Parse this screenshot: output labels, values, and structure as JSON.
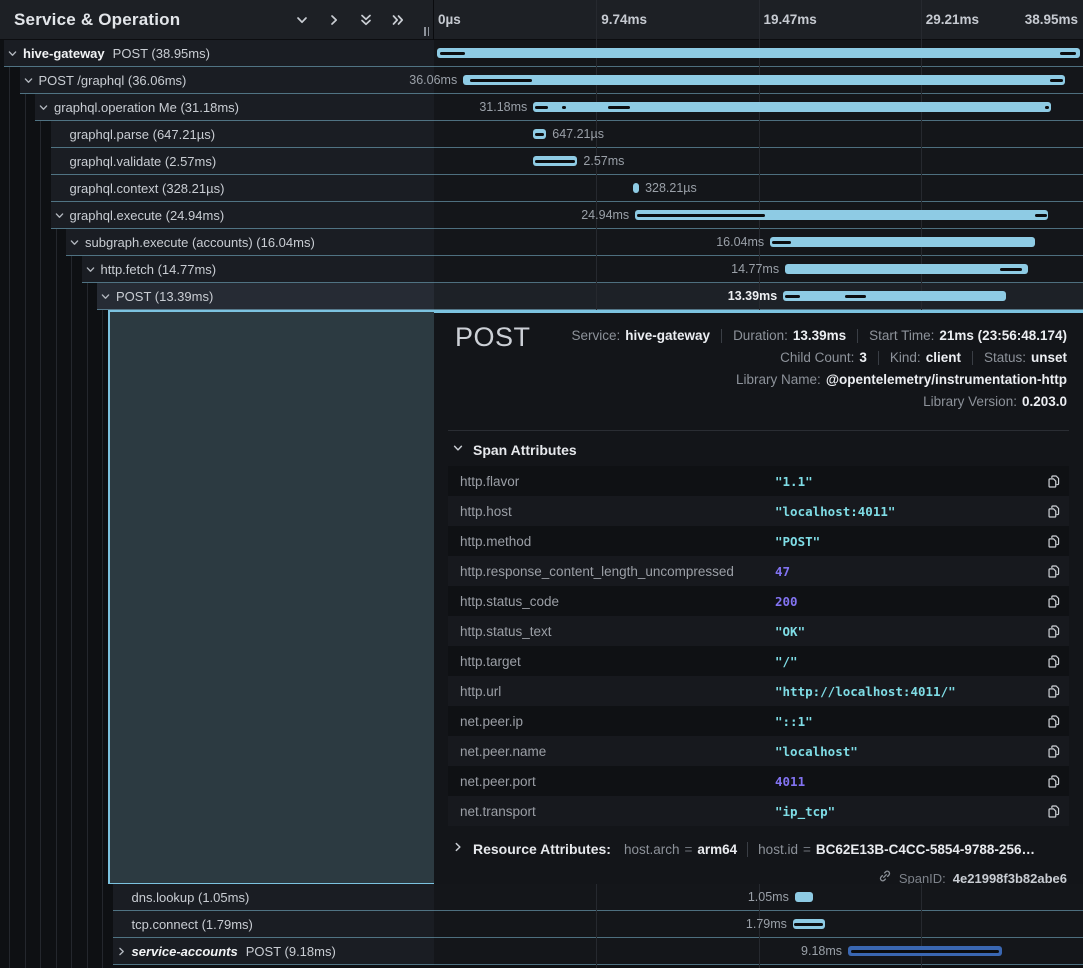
{
  "colors": {
    "accent": "#7cc3e0",
    "bar_light": "#8ecbe4",
    "bar_dark": "#3a67b2",
    "row_separator": "#7ebad4",
    "string_value": "#7fdde6",
    "number_value": "#8273f1",
    "selected_box_bg": "#2c3a41"
  },
  "header": {
    "title": "Service & Operation",
    "icons": [
      {
        "name": "chevron-down-icon"
      },
      {
        "name": "chevron-right-icon"
      },
      {
        "name": "double-chevron-down-icon"
      },
      {
        "name": "double-chevron-right-icon"
      }
    ],
    "resizer": "column-resizer"
  },
  "timeline": {
    "ticks": [
      "0µs",
      "9.74ms",
      "19.47ms",
      "29.21ms",
      "38.95ms"
    ],
    "gridline_positions_pct": [
      25,
      50,
      75
    ]
  },
  "rows_top": [
    {
      "service": "hive-gateway",
      "service_style": "bold",
      "op": "POST (38.95ms)",
      "level": 0,
      "chevron": "down",
      "selected": false,
      "bar": {
        "start": 0.5,
        "width": 99.0,
        "color": "light",
        "label": "38.95ms",
        "side": "none",
        "markers": [
          {
            "s": 0.9,
            "w": 3.9
          },
          {
            "s": 96.4,
            "w": 2.5
          }
        ]
      }
    },
    {
      "op": "POST /graphql (36.06ms)",
      "level": 1,
      "chevron": "down",
      "selected": false,
      "bar": {
        "start": 4.5,
        "width": 92.8,
        "color": "light",
        "label": "36.06ms",
        "side": "left",
        "markers": [
          {
            "s": 5.5,
            "w": 9.6
          },
          {
            "s": 94.9,
            "w": 2.0
          }
        ]
      }
    },
    {
      "op": "graphql.operation Me (31.18ms)",
      "level": 2,
      "chevron": "down",
      "selected": false,
      "bar": {
        "start": 15.3,
        "width": 79.7,
        "color": "light",
        "label": "31.18ms",
        "side": "left",
        "markers": [
          {
            "s": 15.6,
            "w": 2.0
          },
          {
            "s": 19.7,
            "w": 0.7
          },
          {
            "s": 26.8,
            "w": 3.4
          },
          {
            "s": 94.2,
            "w": 0.6
          }
        ]
      }
    },
    {
      "op": "graphql.parse (647.21µs)",
      "level": 3,
      "chevron": null,
      "selected": false,
      "bar": {
        "start": 15.3,
        "width": 2.0,
        "color": "light",
        "label": "647.21µs",
        "side": "right",
        "markers": [
          {
            "s": 15.5,
            "w": 1.5
          }
        ]
      }
    },
    {
      "op": "graphql.validate (2.57ms)",
      "level": 3,
      "chevron": null,
      "selected": false,
      "bar": {
        "start": 15.3,
        "width": 6.8,
        "color": "light",
        "label": "2.57ms",
        "side": "right",
        "markers": [
          {
            "s": 15.5,
            "w": 6.3
          }
        ]
      }
    },
    {
      "op": "graphql.context (328.21µs)",
      "level": 3,
      "chevron": null,
      "selected": false,
      "bar": {
        "start": 30.7,
        "width": 0.9,
        "color": "light",
        "label": "328.21µs",
        "side": "right",
        "markers": []
      }
    },
    {
      "op": "graphql.execute (24.94ms)",
      "level": 3,
      "chevron": "down",
      "selected": false,
      "bar": {
        "start": 31.0,
        "width": 63.6,
        "color": "light",
        "label": "24.94ms",
        "side": "left",
        "markers": [
          {
            "s": 31.3,
            "w": 19.7
          },
          {
            "s": 92.6,
            "w": 1.8
          }
        ]
      }
    },
    {
      "op": "subgraph.execute (accounts) (16.04ms)",
      "level": 4,
      "chevron": "down",
      "selected": false,
      "bar": {
        "start": 51.8,
        "width": 40.8,
        "color": "light",
        "label": "16.04ms",
        "side": "left",
        "markers": [
          {
            "s": 52.1,
            "w": 2.9
          }
        ]
      }
    },
    {
      "op": "http.fetch (14.77ms)",
      "level": 5,
      "chevron": "down",
      "selected": false,
      "bar": {
        "start": 54.1,
        "width": 37.4,
        "color": "light",
        "label": "14.77ms",
        "side": "left",
        "markers": [
          {
            "s": 87.2,
            "w": 3.4
          }
        ]
      }
    },
    {
      "op": "POST (13.39ms)",
      "level": 6,
      "chevron": "down",
      "selected": true,
      "bar": {
        "start": 53.8,
        "width": 34.4,
        "color": "light",
        "label": "13.39ms",
        "side": "left",
        "markers": [
          {
            "s": 54.1,
            "w": 2.3
          },
          {
            "s": 63.3,
            "w": 3.2
          }
        ]
      }
    }
  ],
  "rows_bottom": [
    {
      "op": "dns.lookup (1.05ms)",
      "level": 7,
      "chevron": null,
      "selected": false,
      "bar": {
        "start": 55.6,
        "width": 2.8,
        "color": "light",
        "label": "1.05ms",
        "side": "left",
        "markers": []
      }
    },
    {
      "op": "tcp.connect (1.79ms)",
      "level": 7,
      "chevron": null,
      "selected": false,
      "bar": {
        "start": 55.3,
        "width": 4.9,
        "color": "light",
        "label": "1.79ms",
        "side": "left",
        "markers": [
          {
            "s": 55.5,
            "w": 4.5
          }
        ]
      }
    },
    {
      "service": "service-accounts",
      "service_style": "bold-italic",
      "op": "POST (9.18ms)",
      "level": 7,
      "chevron": "right",
      "selected": false,
      "bar": {
        "start": 63.8,
        "width": 23.7,
        "color": "dark",
        "label": "9.18ms",
        "side": "left",
        "markers": [
          {
            "s": 64.2,
            "w": 22.8
          }
        ]
      }
    }
  ],
  "detail": {
    "title": "POST",
    "meta_lines": [
      [
        {
          "label": "Service",
          "value": "hive-gateway"
        },
        {
          "label": "Duration",
          "value": "13.39ms"
        },
        {
          "label": "Start Time",
          "value": "21ms (23:56:48.174)"
        }
      ],
      [
        {
          "label": "Child Count",
          "value": "3"
        },
        {
          "label": "Kind",
          "value": "client"
        },
        {
          "label": "Status",
          "value": "unset"
        }
      ],
      [
        {
          "label": "Library Name",
          "value": "@opentelemetry/instrumentation-http"
        }
      ],
      [
        {
          "label": "Library Version",
          "value": "0.203.0"
        }
      ]
    ],
    "span_attributes_title": "Span Attributes",
    "attributes": [
      {
        "key": "http.flavor",
        "value": "\"1.1\"",
        "type": "string"
      },
      {
        "key": "http.host",
        "value": "\"localhost:4011\"",
        "type": "string"
      },
      {
        "key": "http.method",
        "value": "\"POST\"",
        "type": "string"
      },
      {
        "key": "http.response_content_length_uncompressed",
        "value": "47",
        "type": "number"
      },
      {
        "key": "http.status_code",
        "value": "200",
        "type": "number"
      },
      {
        "key": "http.status_text",
        "value": "\"OK\"",
        "type": "string"
      },
      {
        "key": "http.target",
        "value": "\"/\"",
        "type": "string"
      },
      {
        "key": "http.url",
        "value": "\"http://localhost:4011/\"",
        "type": "string"
      },
      {
        "key": "net.peer.ip",
        "value": "\"::1\"",
        "type": "string"
      },
      {
        "key": "net.peer.name",
        "value": "\"localhost\"",
        "type": "string"
      },
      {
        "key": "net.peer.port",
        "value": "4011",
        "type": "number"
      },
      {
        "key": "net.transport",
        "value": "\"ip_tcp\"",
        "type": "string"
      }
    ],
    "resource": {
      "title": "Resource Attributes:",
      "pairs": [
        {
          "key": "host.arch",
          "value": "arm64"
        },
        {
          "key": "host.id",
          "value": "BC62E13B-C4CC-5854-9788-256…"
        }
      ]
    },
    "span_id": {
      "label": "SpanID:",
      "value": "4e21998f3b82abe6"
    }
  }
}
